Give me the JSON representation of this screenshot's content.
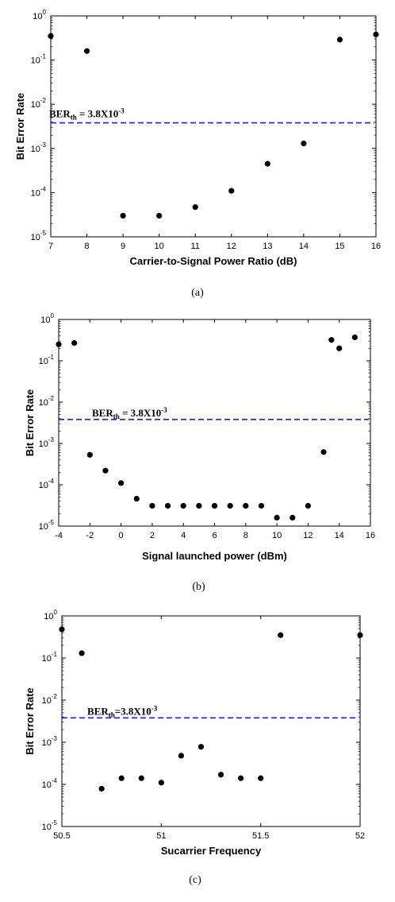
{
  "chart_data": [
    {
      "type": "scatter",
      "panel": "a",
      "caption": "(a)",
      "xlabel": "Carrier-to-Signal Power Ratio (dB)",
      "ylabel": "Bit Error Rate",
      "xlim": [
        7,
        16
      ],
      "ylim_exp": [
        -5,
        0
      ],
      "y_scale": "log",
      "x_ticks": [
        "7",
        "8",
        "9",
        "10",
        "11",
        "12",
        "13",
        "14",
        "15",
        "16"
      ],
      "x_tick_values": [
        7,
        8,
        9,
        10,
        11,
        12,
        13,
        14,
        15,
        16
      ],
      "y_tick_exponents": [
        "0",
        "-1",
        "-2",
        "-3",
        "-4",
        "-5"
      ],
      "threshold": {
        "value": 0.0038,
        "label_main": "BER",
        "label_sub": "th",
        "label_eq": " = 3.8X10",
        "label_exp": "-3"
      },
      "x": [
        7,
        8,
        9,
        10,
        11,
        12,
        13,
        14,
        15,
        16
      ],
      "y": [
        0.35,
        0.16,
        3e-05,
        3e-05,
        4.7e-05,
        0.00011,
        0.00045,
        0.0013,
        0.29,
        0.38
      ]
    },
    {
      "type": "scatter",
      "panel": "b",
      "caption": "(b)",
      "xlabel": "Signal launched power (dBm)",
      "ylabel": "Bit Error Rate",
      "xlim": [
        -4,
        16
      ],
      "ylim_exp": [
        -5,
        0
      ],
      "y_scale": "log",
      "x_ticks": [
        "-4",
        "-2",
        "0",
        "2",
        "4",
        "6",
        "8",
        "10",
        "12",
        "14",
        "16"
      ],
      "x_tick_values": [
        -4,
        -2,
        0,
        2,
        4,
        6,
        8,
        10,
        12,
        14,
        16
      ],
      "y_tick_exponents": [
        "0",
        "-1",
        "-2",
        "-3",
        "-4",
        "-5"
      ],
      "threshold": {
        "value": 0.0038,
        "label_main": "BER",
        "label_sub": "th",
        "label_eq": " = 3.8X10",
        "label_exp": "-3"
      },
      "x": [
        -4,
        -3,
        -2,
        -1,
        0,
        1,
        2,
        3,
        4,
        5,
        6,
        7,
        8,
        9,
        10,
        11,
        12,
        13,
        13.5,
        14,
        15
      ],
      "y": [
        0.25,
        0.27,
        0.00053,
        0.00022,
        0.00011,
        4.6e-05,
        3.1e-05,
        3.1e-05,
        3.1e-05,
        3.1e-05,
        3.1e-05,
        3.1e-05,
        3.1e-05,
        3.1e-05,
        1.6e-05,
        1.6e-05,
        3.1e-05,
        0.00062,
        0.32,
        0.2,
        0.37
      ]
    },
    {
      "type": "scatter",
      "panel": "c",
      "caption": "(c)",
      "xlabel": "Sucarrier Frequency",
      "ylabel": "Bit Error Rate",
      "xlim": [
        50.5,
        52
      ],
      "ylim_exp": [
        -5,
        0
      ],
      "y_scale": "log",
      "x_ticks": [
        "50.5",
        "51",
        "51.5",
        "52"
      ],
      "x_tick_values": [
        50.5,
        51,
        51.5,
        52
      ],
      "y_tick_exponents": [
        "0",
        "-1",
        "-2",
        "-3",
        "-4",
        "-5"
      ],
      "threshold": {
        "value": 0.0038,
        "label_main": "BER",
        "label_sub": "th",
        "label_eq": "=3.8X10",
        "label_exp": "-3"
      },
      "x": [
        50.5,
        50.6,
        50.7,
        50.8,
        50.9,
        51.0,
        51.1,
        51.2,
        51.3,
        51.4,
        51.5,
        51.6,
        52.0
      ],
      "y": [
        0.48,
        0.13,
        7.9e-05,
        0.00014,
        0.00014,
        0.00011,
        0.00048,
        0.00078,
        0.00017,
        0.00014,
        0.00014,
        0.35,
        0.35
      ]
    }
  ],
  "style": {
    "marker_color": "#000000",
    "threshold_color": "#1a1aff",
    "axis_color": "#000000"
  }
}
